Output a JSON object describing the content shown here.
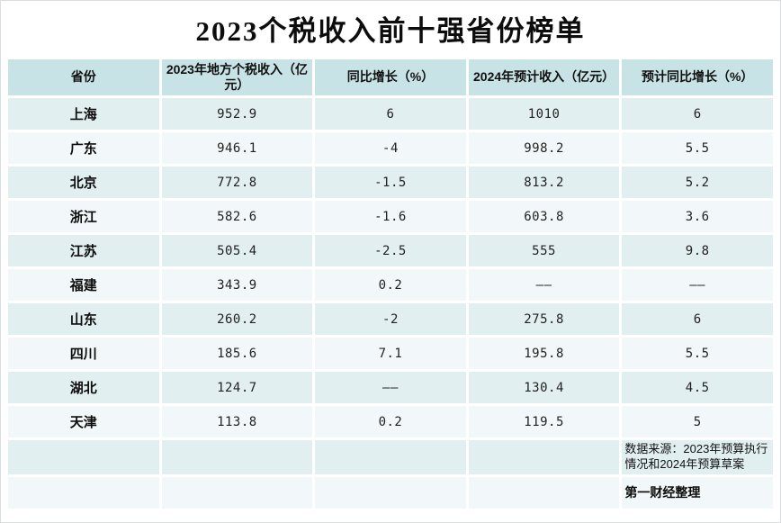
{
  "title": "2023个税收入前十强省份榜单",
  "chart_data": {
    "type": "table",
    "title": "2023个税收入前十强省份榜单",
    "columns": [
      "省份",
      "2023年地方个税收入（亿元）",
      "同比增长（%）",
      "2024年预计收入（亿元）",
      "预计同比增长（%）"
    ],
    "rows": [
      {
        "province": "上海",
        "income_2023": "952.9",
        "yoy_growth": "6",
        "income_2024": "1010",
        "expected_growth": "6"
      },
      {
        "province": "广东",
        "income_2023": "946.1",
        "yoy_growth": "-4",
        "income_2024": "998.2",
        "expected_growth": "5.5"
      },
      {
        "province": "北京",
        "income_2023": "772.8",
        "yoy_growth": "-1.5",
        "income_2024": "813.2",
        "expected_growth": "5.2"
      },
      {
        "province": "浙江",
        "income_2023": "582.6",
        "yoy_growth": "-1.6",
        "income_2024": "603.8",
        "expected_growth": "3.6"
      },
      {
        "province": "江苏",
        "income_2023": "505.4",
        "yoy_growth": "-2.5",
        "income_2024": "555",
        "expected_growth": "9.8"
      },
      {
        "province": "福建",
        "income_2023": "343.9",
        "yoy_growth": "0.2",
        "income_2024": "——",
        "expected_growth": "——"
      },
      {
        "province": "山东",
        "income_2023": "260.2",
        "yoy_growth": "-2",
        "income_2024": "275.8",
        "expected_growth": "6"
      },
      {
        "province": "四川",
        "income_2023": "185.6",
        "yoy_growth": "7.1",
        "income_2024": "195.8",
        "expected_growth": "5.5"
      },
      {
        "province": "湖北",
        "income_2023": "124.7",
        "yoy_growth": "——",
        "income_2024": "130.4",
        "expected_growth": "4.5"
      },
      {
        "province": "天津",
        "income_2023": "113.8",
        "yoy_growth": "0.2",
        "income_2024": "119.5",
        "expected_growth": "5"
      }
    ]
  },
  "footer": {
    "source_note": "数据来源：2023年预算执行情况和2024年预算草案",
    "credit": "第一财经整理"
  },
  "colors": {
    "header_bg": "#c8e3e5",
    "row_odd_bg": "#e2eff1",
    "row_even_bg": "#f2f8f9",
    "background": "#ffffff",
    "text": "#111111"
  }
}
